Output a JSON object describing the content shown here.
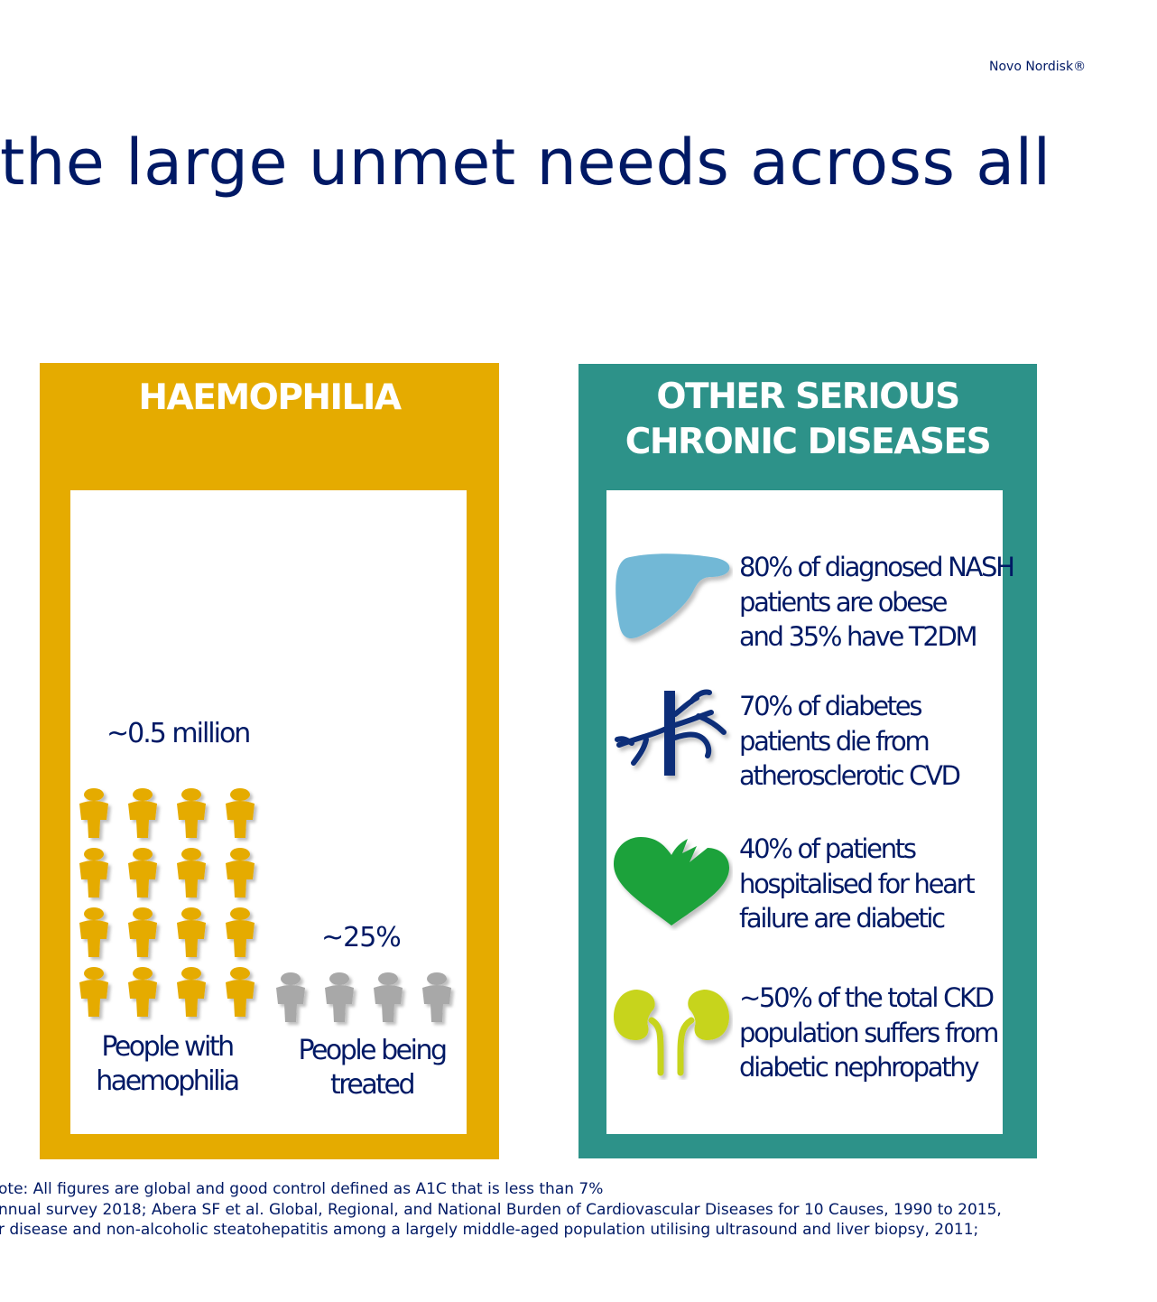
{
  "brand": {
    "name": "Novo Nordisk®"
  },
  "title": "the large unmet needs across all",
  "haemophilia": {
    "heading": "HAEMOPHILIA",
    "total_label": "~0.5 million",
    "treated_label": "~25%",
    "people_total": 16,
    "people_treated": 4,
    "caption_with": [
      "People with",
      "haemophilia"
    ],
    "caption_treated": [
      "People being",
      "treated"
    ],
    "colors": {
      "panel": "#e5ab00",
      "figure_untreated": "#e5ab00",
      "figure_treated": "#a8a8a8"
    }
  },
  "other": {
    "heading": [
      "OTHER SERIOUS",
      "CHRONIC DISEASES"
    ],
    "items": [
      {
        "icon": "liver-icon",
        "color": "#72b8d6",
        "lines": [
          "80% of diagnosed NASH",
          "patients are obese",
          "and 35% have T2DM"
        ]
      },
      {
        "icon": "artery-icon",
        "color": "#0c2f79",
        "lines": [
          "70% of diabetes",
          "patients die from",
          "atherosclerotic CVD"
        ]
      },
      {
        "icon": "heart-icon",
        "color": "#1aa23a",
        "lines": [
          "40% of patients",
          "hospitalised for heart",
          "failure are diabetic"
        ]
      },
      {
        "icon": "kidney-icon",
        "color": "#c7d41e",
        "lines": [
          "~50% of the total CKD",
          "population suffers from",
          "diabetic nephropathy"
        ]
      }
    ],
    "colors": {
      "panel": "#2d9289"
    }
  },
  "footnotes": [
    "ote: All figures are global and good control defined as A1C that is less than 7%",
    "nnual survey 2018; Abera SF et al. Global, Regional, and National Burden of Cardiovascular Diseases for 10 Causes, 1990 to 2015,",
    "r disease and non-alcoholic steatohepatitis among a largely middle-aged population utilising ultrasound and liver biopsy, 2011;"
  ]
}
